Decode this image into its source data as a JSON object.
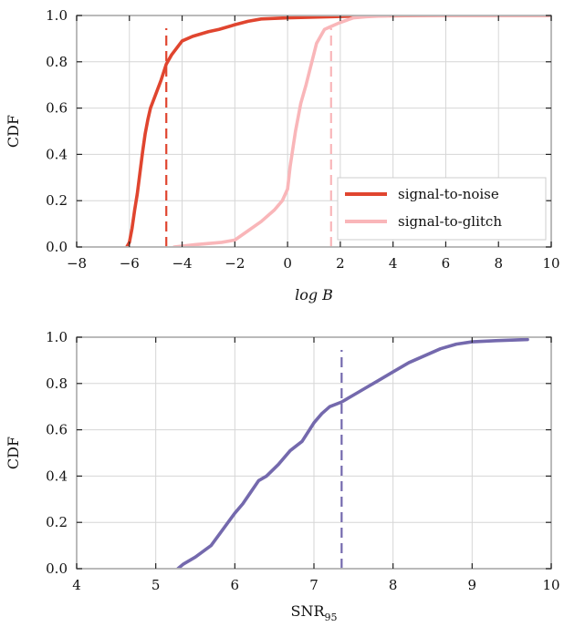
{
  "chart_data": [
    {
      "type": "line",
      "title": "",
      "xlabel": "log B",
      "ylabel": "CDF",
      "xlim": [
        -8,
        10
      ],
      "ylim": [
        0,
        1
      ],
      "xticks": [
        "−8",
        "−6",
        "−4",
        "−2",
        "0",
        "2",
        "4",
        "6",
        "8",
        "10"
      ],
      "yticks": [
        "0.0",
        "0.2",
        "0.4",
        "0.6",
        "0.8",
        "1.0"
      ],
      "grid": true,
      "legend_position": "lower-right",
      "series": [
        {
          "name": "signal-to-noise",
          "color": "#e0452f",
          "x": [
            -6.1,
            -6.0,
            -5.9,
            -5.8,
            -5.7,
            -5.6,
            -5.5,
            -5.4,
            -5.3,
            -5.2,
            -5.0,
            -4.8,
            -4.6,
            -4.4,
            -4.2,
            -4.0,
            -3.6,
            -3.0,
            -2.6,
            -2.0,
            -1.5,
            -1.0,
            0.0,
            1.0,
            2.0,
            3.0,
            6.0,
            10.0
          ],
          "y": [
            0.0,
            0.02,
            0.08,
            0.16,
            0.23,
            0.32,
            0.41,
            0.49,
            0.55,
            0.6,
            0.66,
            0.72,
            0.79,
            0.83,
            0.86,
            0.89,
            0.91,
            0.93,
            0.94,
            0.96,
            0.975,
            0.985,
            0.99,
            0.993,
            0.996,
            0.998,
            1.0,
            1.0
          ]
        },
        {
          "name": "signal-to-glitch",
          "color": "#f9b6b9",
          "x": [
            -4.3,
            -3.5,
            -3.0,
            -2.5,
            -2.0,
            -1.5,
            -1.0,
            -0.5,
            -0.2,
            0.0,
            0.1,
            0.3,
            0.5,
            0.7,
            0.9,
            1.1,
            1.3,
            1.4,
            1.6,
            1.8,
            2.0,
            2.5,
            3.0,
            4.0,
            10.0
          ],
          "y": [
            0.0,
            0.01,
            0.015,
            0.02,
            0.03,
            0.07,
            0.11,
            0.16,
            0.2,
            0.25,
            0.35,
            0.5,
            0.62,
            0.7,
            0.79,
            0.88,
            0.92,
            0.94,
            0.95,
            0.96,
            0.97,
            0.99,
            0.995,
            1.0,
            1.0
          ]
        }
      ],
      "reference_lines": [
        {
          "axis": "x",
          "value": -4.6,
          "color": "#e0452f",
          "style": "dashed"
        },
        {
          "axis": "x",
          "value": 1.65,
          "color": "#f9b6b9",
          "style": "dashed"
        }
      ]
    },
    {
      "type": "line",
      "title": "",
      "xlabel": "SNR",
      "xlabel_sub": "95",
      "ylabel": "CDF",
      "xlim": [
        4,
        10
      ],
      "ylim": [
        0,
        1
      ],
      "xticks": [
        "4",
        "5",
        "6",
        "7",
        "8",
        "9",
        "10"
      ],
      "yticks": [
        "0.0",
        "0.2",
        "0.4",
        "0.6",
        "0.8",
        "1.0"
      ],
      "grid": true,
      "series": [
        {
          "color": "#7469ad",
          "x": [
            5.28,
            5.35,
            5.5,
            5.7,
            5.85,
            6.0,
            6.1,
            6.2,
            6.3,
            6.4,
            6.55,
            6.7,
            6.85,
            7.0,
            7.1,
            7.2,
            7.35,
            7.5,
            7.65,
            7.8,
            8.0,
            8.2,
            8.4,
            8.6,
            8.8,
            9.0,
            9.3,
            9.7
          ],
          "y": [
            0.0,
            0.02,
            0.05,
            0.1,
            0.17,
            0.24,
            0.28,
            0.33,
            0.38,
            0.4,
            0.45,
            0.51,
            0.55,
            0.63,
            0.67,
            0.7,
            0.72,
            0.75,
            0.78,
            0.81,
            0.85,
            0.89,
            0.92,
            0.95,
            0.97,
            0.98,
            0.985,
            0.99
          ]
        }
      ],
      "reference_lines": [
        {
          "axis": "x",
          "value": 7.35,
          "color": "#7469ad",
          "style": "dashed"
        }
      ]
    }
  ]
}
